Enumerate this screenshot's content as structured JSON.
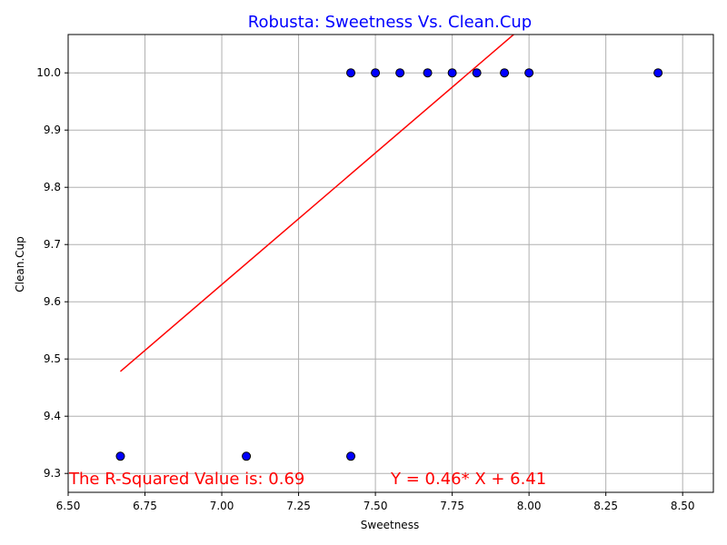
{
  "chart_data": {
    "type": "scatter",
    "title": "Robusta: Sweetness Vs. Clean.Cup",
    "xlabel": "Sweetness",
    "ylabel": "Clean.Cup",
    "xlim": [
      6.5,
      8.6
    ],
    "ylim": [
      9.267,
      10.067
    ],
    "xticks": [
      "6.50",
      "6.75",
      "7.00",
      "7.25",
      "7.50",
      "7.75",
      "8.00",
      "8.25",
      "8.50"
    ],
    "yticks": [
      "9.3",
      "9.4",
      "9.5",
      "9.6",
      "9.7",
      "9.8",
      "9.9",
      "10.0"
    ],
    "grid": true,
    "points": [
      {
        "x": 6.67,
        "y": 9.33
      },
      {
        "x": 7.08,
        "y": 9.33
      },
      {
        "x": 7.42,
        "y": 9.33
      },
      {
        "x": 7.42,
        "y": 10.0
      },
      {
        "x": 7.5,
        "y": 10.0
      },
      {
        "x": 7.58,
        "y": 10.0
      },
      {
        "x": 7.67,
        "y": 10.0
      },
      {
        "x": 7.75,
        "y": 10.0
      },
      {
        "x": 7.83,
        "y": 10.0
      },
      {
        "x": 7.92,
        "y": 10.0
      },
      {
        "x": 8.0,
        "y": 10.0
      },
      {
        "x": 8.42,
        "y": 10.0
      }
    ],
    "regression": {
      "slope": 0.46,
      "intercept": 6.41,
      "x_start": 6.67,
      "x_end": 8.42
    },
    "annotations": {
      "r_squared": "The R-Squared Value is: 0.69",
      "equation": "Y = 0.46* X + 6.41"
    },
    "colors": {
      "title": "#0000ff",
      "marker_fill": "#0000ff",
      "marker_edge": "#000000",
      "regression_line": "#ff0000",
      "annotation": "#ff0000",
      "grid": "#b0b0b0"
    }
  }
}
